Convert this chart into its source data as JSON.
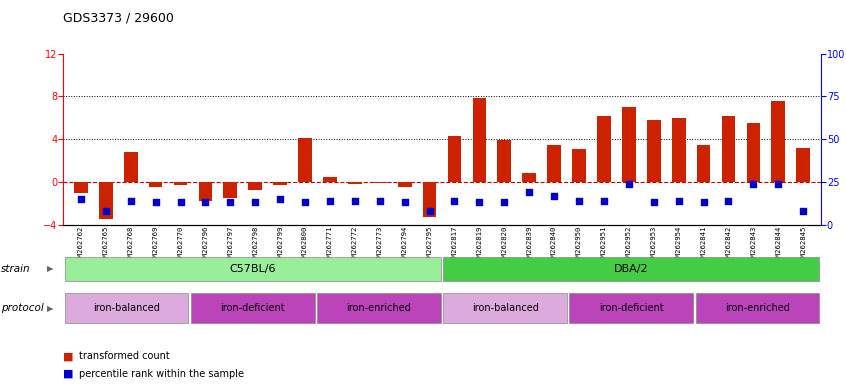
{
  "title": "GDS3373 / 29600",
  "samples": [
    "GSM262762",
    "GSM262765",
    "GSM262768",
    "GSM262769",
    "GSM262770",
    "GSM262796",
    "GSM262797",
    "GSM262798",
    "GSM262799",
    "GSM262800",
    "GSM262771",
    "GSM262772",
    "GSM262773",
    "GSM262794",
    "GSM262795",
    "GSM262817",
    "GSM262819",
    "GSM262820",
    "GSM262839",
    "GSM262840",
    "GSM262950",
    "GSM262951",
    "GSM262952",
    "GSM262953",
    "GSM262954",
    "GSM262841",
    "GSM262842",
    "GSM262843",
    "GSM262844",
    "GSM262845"
  ],
  "transformed_count": [
    -1.0,
    -3.5,
    2.8,
    -0.5,
    -0.3,
    -1.8,
    -1.5,
    -0.8,
    -0.3,
    4.1,
    0.5,
    -0.2,
    -0.1,
    -0.5,
    -3.3,
    4.3,
    7.9,
    3.9,
    0.8,
    3.5,
    3.1,
    6.2,
    7.0,
    5.8,
    6.0,
    3.5,
    6.2,
    5.5,
    7.6,
    3.2
  ],
  "percentile_rank": [
    15,
    8,
    14,
    13,
    13,
    13,
    13,
    13,
    15,
    13,
    14,
    14,
    14,
    13,
    8,
    14,
    13,
    13,
    19,
    17,
    14,
    14,
    24,
    13,
    14,
    13,
    14,
    24,
    24,
    8
  ],
  "strain_groups": [
    {
      "label": "C57BL/6",
      "start": 0,
      "end": 15,
      "color": "#99EE99"
    },
    {
      "label": "DBA/2",
      "start": 15,
      "end": 30,
      "color": "#44CC44"
    }
  ],
  "protocol_groups": [
    {
      "label": "iron-balanced",
      "start": 0,
      "end": 5,
      "color": "#DDAADD"
    },
    {
      "label": "iron-deficient",
      "start": 5,
      "end": 10,
      "color": "#CC55CC"
    },
    {
      "label": "iron-enriched",
      "start": 10,
      "end": 15,
      "color": "#CC55CC"
    },
    {
      "label": "iron-balanced",
      "start": 15,
      "end": 20,
      "color": "#DDAADD"
    },
    {
      "label": "iron-deficient",
      "start": 20,
      "end": 25,
      "color": "#CC55CC"
    },
    {
      "label": "iron-enriched",
      "start": 25,
      "end": 30,
      "color": "#CC55CC"
    }
  ],
  "ylim_left": [
    -4,
    12
  ],
  "ylim_right": [
    0,
    100
  ],
  "yticks_left": [
    -4,
    0,
    4,
    8,
    12
  ],
  "yticks_right": [
    0,
    25,
    50,
    75,
    100
  ],
  "bar_color": "#CC2200",
  "dot_color": "#0000CC",
  "zero_line_color": "#CC0000",
  "grid_color": "#000000"
}
